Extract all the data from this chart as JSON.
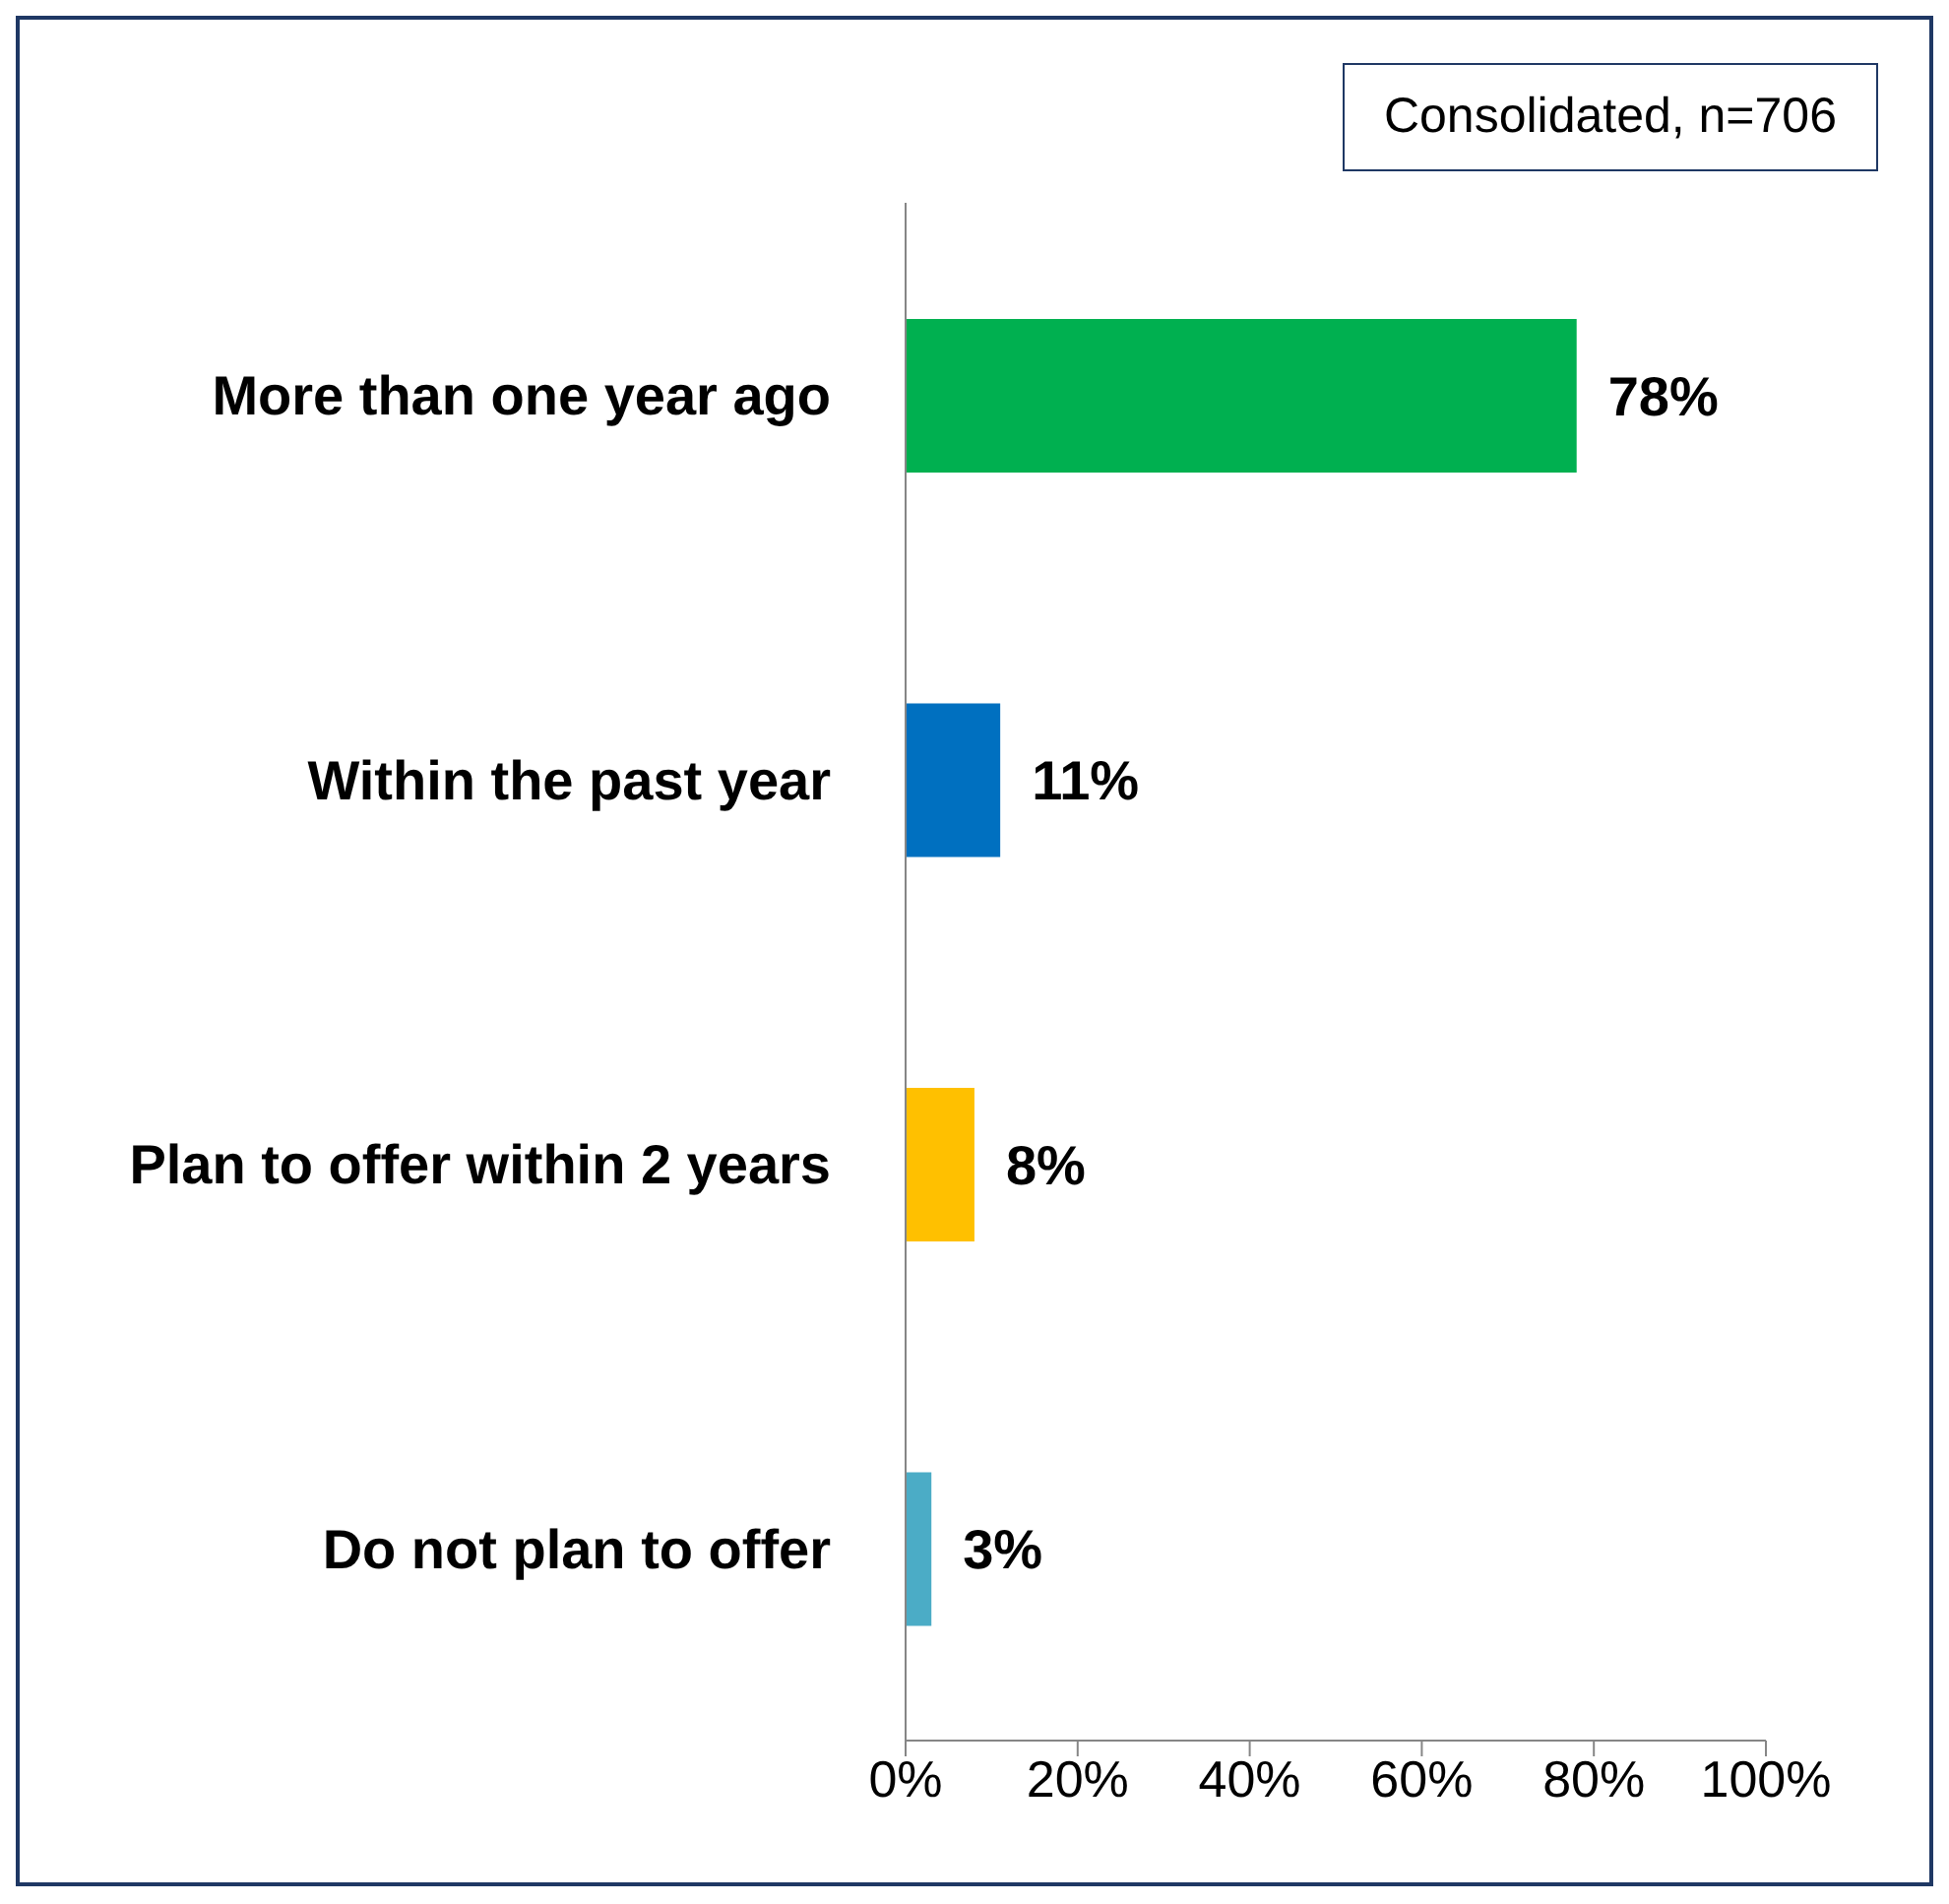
{
  "chart_data": {
    "type": "bar",
    "orientation": "horizontal",
    "categories": [
      "More than one year ago",
      "Within the past year",
      "Plan to offer within 2 years",
      "Do not plan to offer"
    ],
    "values": [
      78,
      11,
      8,
      3
    ],
    "colors": [
      "#00b050",
      "#0070c0",
      "#ffc000",
      "#4bacc6"
    ],
    "value_labels": [
      "78%",
      "11%",
      "8%",
      "3%"
    ],
    "xlim": [
      0,
      100
    ],
    "xticks": [
      {
        "value": 0,
        "label": "0%"
      },
      {
        "value": 20,
        "label": "20%"
      },
      {
        "value": 40,
        "label": "40%"
      },
      {
        "value": 60,
        "label": "60%"
      },
      {
        "value": 80,
        "label": "80%"
      },
      {
        "value": 100,
        "label": "100%"
      }
    ],
    "grid": false,
    "legend": false,
    "annotations": [
      "Consolidated, n=706"
    ]
  }
}
